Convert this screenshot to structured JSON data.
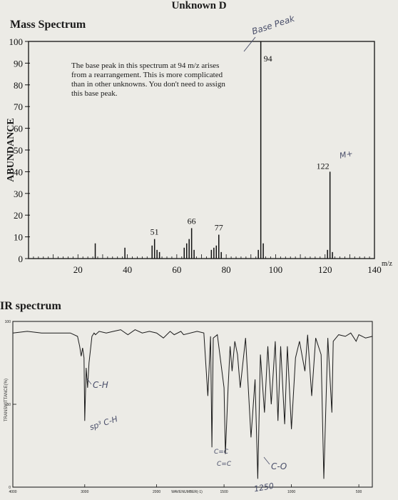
{
  "title": "Unknown D",
  "mass_spectrum": {
    "heading": "Mass Spectrum",
    "ylabel": "ABUNDANCE",
    "x_unit_label": "m/z",
    "note": "The base peak in this spectrum at 94 m/z arises from a rearrangement. This is more complicated than in other unknowns. You don't need to assign this base peak.",
    "peak_labels": [
      "94",
      "122",
      "51",
      "66",
      "77"
    ],
    "handwritten": {
      "base_peak": "Base Peak",
      "molecular_ion": "M+"
    }
  },
  "ir_spectrum": {
    "heading": "IR spectrum",
    "ylabel": "TRANSMITTANCE(%)",
    "xlabel": "WAVENUMBER(-1)",
    "handwritten": {
      "ch": "C-H",
      "sp3": "sp³ C-H",
      "cc1": "C=C",
      "cc2": "C=C",
      "co": "C-O",
      "wn": "1250"
    }
  },
  "chart_data": [
    {
      "type": "bar",
      "title": "Mass Spectrum",
      "ylabel": "ABUNDANCE",
      "xlabel": "m/z",
      "xlim": [
        0,
        140
      ],
      "ylim": [
        0,
        100
      ],
      "x_ticks": [
        20,
        40,
        60,
        80,
        100,
        120,
        140
      ],
      "y_ticks": [
        0,
        10,
        20,
        30,
        40,
        50,
        60,
        70,
        80,
        90,
        100
      ],
      "x": [
        27,
        39,
        50,
        51,
        52,
        53,
        63,
        64,
        65,
        66,
        67,
        74,
        75,
        76,
        77,
        78,
        93,
        94,
        95,
        121,
        122,
        123
      ],
      "values": [
        7,
        5,
        6,
        9,
        4,
        3,
        5,
        7,
        9,
        14,
        4,
        4,
        5,
        6,
        11,
        3,
        4,
        100,
        7,
        4,
        40,
        3
      ],
      "labeled_peaks": [
        {
          "x": 51,
          "label": "51"
        },
        {
          "x": 66,
          "label": "66"
        },
        {
          "x": 77,
          "label": "77"
        },
        {
          "x": 94,
          "label": "94"
        },
        {
          "x": 122,
          "label": "122"
        }
      ]
    },
    {
      "type": "line",
      "title": "IR spectrum",
      "xlabel": "WAVENUMBER(-1)",
      "ylabel": "TRANSMITTANCE(%)",
      "xlim": [
        4000,
        400
      ],
      "ylim": [
        0,
        100
      ],
      "x_ticks": [
        4000,
        3000,
        2000,
        1500,
        1000,
        500
      ],
      "y_ticks": [
        0,
        50,
        100
      ],
      "x": [
        4000,
        3800,
        3600,
        3400,
        3200,
        3100,
        3070,
        3050,
        3030,
        3010,
        3000,
        2980,
        2960,
        2940,
        2900,
        2870,
        2850,
        2800,
        2700,
        2600,
        2500,
        2400,
        2300,
        2200,
        2100,
        2000,
        1950,
        1900,
        1870,
        1820,
        1800,
        1700,
        1650,
        1620,
        1600,
        1590,
        1580,
        1550,
        1500,
        1490,
        1470,
        1455,
        1440,
        1420,
        1400,
        1380,
        1340,
        1300,
        1270,
        1250,
        1230,
        1200,
        1175,
        1150,
        1120,
        1100,
        1080,
        1050,
        1030,
        1000,
        970,
        940,
        900,
        880,
        850,
        820,
        780,
        760,
        730,
        700,
        690,
        650,
        600,
        560,
        520,
        500,
        450,
        400
      ],
      "values": [
        93,
        94,
        93,
        93,
        93,
        91,
        85,
        79,
        84,
        78,
        40,
        72,
        60,
        75,
        91,
        93,
        92,
        94,
        93,
        94,
        95,
        92,
        95,
        93,
        94,
        93,
        90,
        94,
        92,
        94,
        92,
        94,
        93,
        55,
        91,
        24,
        90,
        92,
        60,
        20,
        60,
        85,
        70,
        88,
        80,
        60,
        90,
        30,
        65,
        5,
        80,
        45,
        85,
        50,
        88,
        40,
        85,
        38,
        85,
        35,
        78,
        88,
        70,
        92,
        55,
        90,
        80,
        5,
        90,
        45,
        88,
        92,
        91,
        93,
        88,
        92,
        90,
        91
      ]
    }
  ]
}
